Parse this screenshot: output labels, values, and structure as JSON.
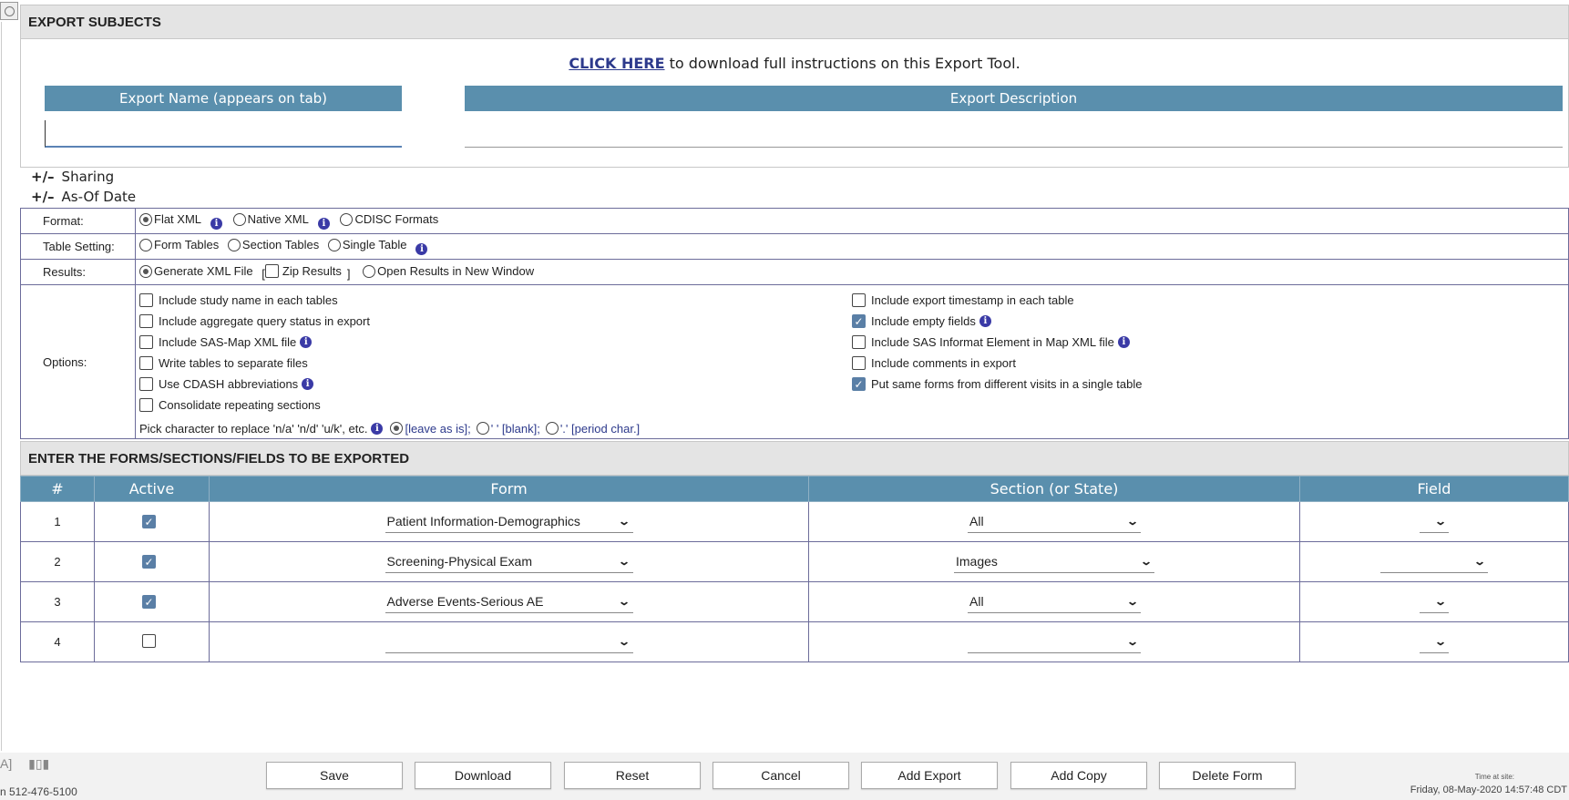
{
  "header": {
    "title": "EXPORT SUBJECTS"
  },
  "instructions": {
    "link": "CLICK HERE",
    "text": " to download full instructions on this Export Tool."
  },
  "export_name": {
    "label": "Export Name  (appears on tab)",
    "value": ""
  },
  "export_description": {
    "label": "Export Description",
    "value": ""
  },
  "toggles": {
    "symbol": "+/–",
    "sharing": "Sharing",
    "as_of_date": "As-Of Date"
  },
  "settings": {
    "format": {
      "label": "Format:",
      "options": [
        "Flat XML",
        "Native XML",
        "CDISC Formats"
      ],
      "selected": "Flat XML"
    },
    "table_setting": {
      "label": "Table Setting:",
      "options": [
        "Form Tables",
        "Section Tables",
        "Single Table"
      ],
      "selected": ""
    },
    "results": {
      "label": "Results:",
      "generate": "Generate XML File",
      "zip_open": "[",
      "zip": "Zip Results",
      "zip_close": "]",
      "open_window": "Open Results in New Window",
      "zip_checked": false
    },
    "options": {
      "label": "Options:",
      "left": [
        {
          "label": "Include study name in each tables",
          "checked": false,
          "info": false
        },
        {
          "label": "Include aggregate query status in export",
          "checked": false,
          "info": false
        },
        {
          "label": "Include SAS-Map XML file",
          "checked": false,
          "info": true
        },
        {
          "label": "Write tables to separate files",
          "checked": false,
          "info": false
        },
        {
          "label": "Use CDASH abbreviations",
          "checked": false,
          "info": true
        },
        {
          "label": "Consolidate repeating sections",
          "checked": false,
          "info": false
        }
      ],
      "right": [
        {
          "label": "Include export timestamp in each table",
          "checked": false,
          "info": false
        },
        {
          "label": "Include empty fields",
          "checked": true,
          "info": true
        },
        {
          "label": "Include SAS Informat Element in Map XML file",
          "checked": false,
          "info": true
        },
        {
          "label": "Include comments in export",
          "checked": false,
          "info": false
        },
        {
          "label": "Put same forms from different visits in a single table",
          "checked": true,
          "info": false
        }
      ],
      "pick_label": "Pick character to replace 'n/a' 'n/d' 'u/k', etc.",
      "pick_options": [
        "[leave as is];",
        "' ' [blank];",
        "'.' [period char.]"
      ],
      "pick_selected": "[leave as is];"
    }
  },
  "forms_section": {
    "title": "ENTER THE FORMS/SECTIONS/FIELDS TO BE EXPORTED",
    "columns": [
      "#",
      "Active",
      "Form",
      "Section (or State)",
      "Field"
    ],
    "rows": [
      {
        "num": "1",
        "active": true,
        "form": "Patient Information-Demographics",
        "section": "All",
        "field": ""
      },
      {
        "num": "2",
        "active": true,
        "form": "Screening-Physical Exam",
        "section": "Images",
        "field": ""
      },
      {
        "num": "3",
        "active": true,
        "form": "Adverse Events-Serious AE",
        "section": "All",
        "field": ""
      },
      {
        "num": "4",
        "active": false,
        "form": "",
        "section": "",
        "field": ""
      }
    ]
  },
  "footer": {
    "buttons": [
      "Save",
      "Download",
      "Reset",
      "Cancel",
      "Add Export",
      "Add Copy",
      "Delete Form"
    ],
    "phone": "n 512-476-5100",
    "time_label": "Time at site:",
    "time_value": "Friday, 08-May-2020 14:57:48 CDT",
    "icons": [
      "bracket-icon",
      "bar-chart-icon"
    ]
  },
  "colors": {
    "header_blue": "#5a8fad",
    "link": "#2d3a8c",
    "border": "#6c6c9a",
    "check": "#5a7fa6",
    "info": "#3a3aa6"
  }
}
